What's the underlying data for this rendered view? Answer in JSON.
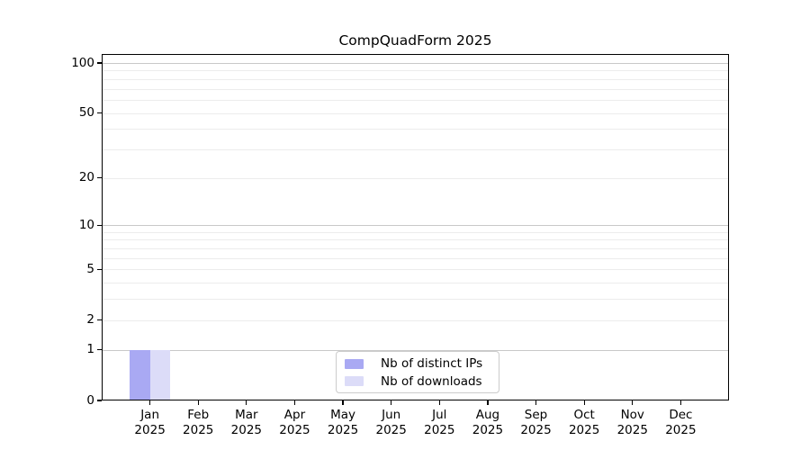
{
  "chart_data": {
    "type": "bar",
    "title": "CompQuadForm 2025",
    "x_tick_labels": [
      [
        "Jan",
        "2025"
      ],
      [
        "Feb",
        "2025"
      ],
      [
        "Mar",
        "2025"
      ],
      [
        "Apr",
        "2025"
      ],
      [
        "May",
        "2025"
      ],
      [
        "Jun",
        "2025"
      ],
      [
        "Jul",
        "2025"
      ],
      [
        "Aug",
        "2025"
      ],
      [
        "Sep",
        "2025"
      ],
      [
        "Oct",
        "2025"
      ],
      [
        "Nov",
        "2025"
      ],
      [
        "Dec",
        "2025"
      ]
    ],
    "series": [
      {
        "name": "Nb of distinct IPs",
        "color": "#a9a9f3",
        "values": [
          1,
          0,
          0,
          0,
          0,
          0,
          0,
          0,
          0,
          0,
          0,
          0
        ]
      },
      {
        "name": "Nb of downloads",
        "color": "#dcdcf8",
        "values": [
          1,
          0,
          0,
          0,
          0,
          0,
          0,
          0,
          0,
          0,
          0,
          0
        ]
      }
    ],
    "yscale": "log1p",
    "ylim": [
      0,
      114
    ],
    "y_tick_values": [
      0,
      1,
      2,
      5,
      10,
      20,
      50,
      100
    ],
    "y_major_gridlines": [
      1,
      10,
      100
    ],
    "y_minor_gridlines": [
      2,
      3,
      4,
      5,
      6,
      7,
      8,
      9,
      20,
      30,
      40,
      50,
      60,
      70,
      80,
      90
    ],
    "grid": "horizontal",
    "legend_position": "lower center",
    "colors": {
      "axis": "#000000",
      "major_grid": "#c9c9c9",
      "minor_grid": "#ececec",
      "legend_border": "#cccccc",
      "text": "#000000"
    }
  }
}
